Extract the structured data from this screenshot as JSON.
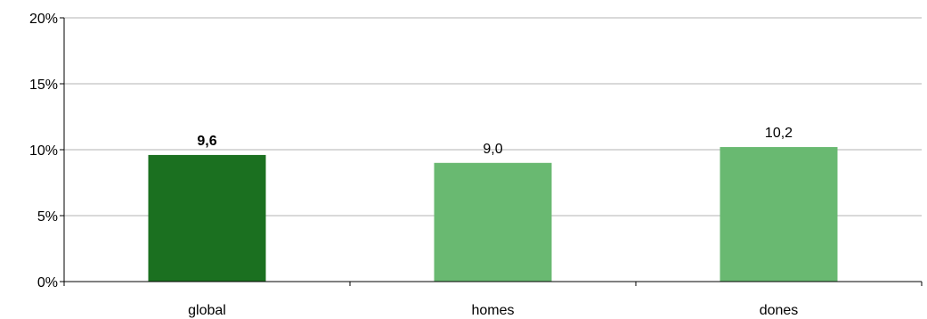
{
  "chart_data": {
    "type": "bar",
    "title": "",
    "xlabel": "",
    "ylabel": "",
    "categories": [
      "global",
      "homes",
      "dones"
    ],
    "values": [
      9.6,
      9.0,
      10.2
    ],
    "data_labels": [
      "9,6",
      "9,0",
      "10,2"
    ],
    "bold_labels": [
      true,
      false,
      false
    ],
    "colors": [
      "#1b7020",
      "#69b971",
      "#69b971"
    ],
    "ylim": [
      0,
      20
    ],
    "yticks": [
      0,
      5,
      10,
      15,
      20
    ],
    "ytick_labels": [
      "0%",
      "5%",
      "10%",
      "15%",
      "20%"
    ],
    "grid": true,
    "legend": "none"
  }
}
